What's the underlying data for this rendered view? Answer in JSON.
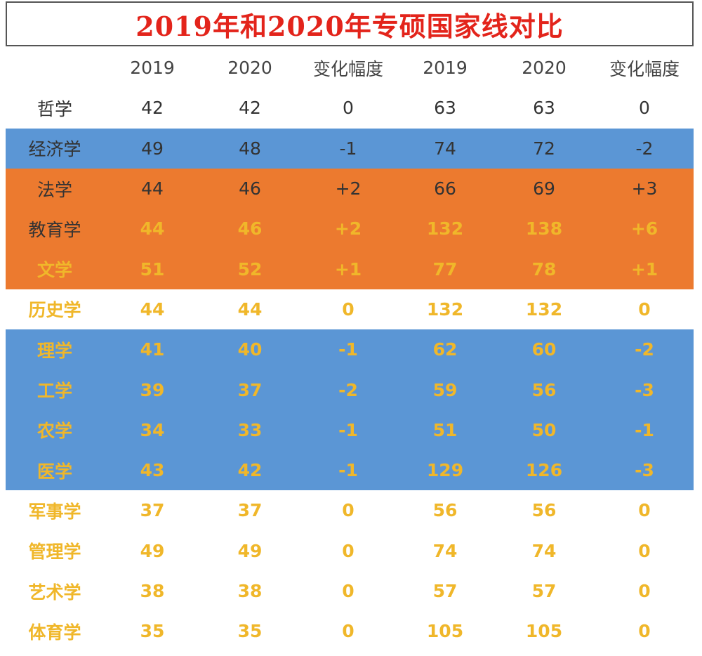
{
  "title": "2019年和2020年专硕国家线对比",
  "header": [
    "",
    "2019",
    "2020",
    "变化幅度",
    "2019",
    "2020",
    "变化幅度"
  ],
  "rows": [
    {
      "cells": [
        "哲学",
        "42",
        "42",
        "0",
        "63",
        "63",
        "0"
      ],
      "bg": "none",
      "text": "dark"
    },
    {
      "cells": [
        "经济学",
        "49",
        "48",
        "-1",
        "74",
        "72",
        "-2"
      ],
      "bg": "blue",
      "text": "dark"
    },
    {
      "cells": [
        "法学",
        "44",
        "46",
        "+2",
        "66",
        "69",
        "+3"
      ],
      "bg": "orange",
      "text": "dark"
    },
    {
      "cells": [
        "教育学",
        "44",
        "46",
        "+2",
        "132",
        "138",
        "+6"
      ],
      "bg": "orange",
      "text": "gold",
      "label_text": "dark"
    },
    {
      "cells": [
        "文学",
        "51",
        "52",
        "+1",
        "77",
        "78",
        "+1"
      ],
      "bg": "orange",
      "text": "gold"
    },
    {
      "cells": [
        "历史学",
        "44",
        "44",
        "0",
        "132",
        "132",
        "0"
      ],
      "bg": "none",
      "text": "gold"
    },
    {
      "cells": [
        "理学",
        "41",
        "40",
        "-1",
        "62",
        "60",
        "-2"
      ],
      "bg": "blue",
      "text": "gold"
    },
    {
      "cells": [
        "工学",
        "39",
        "37",
        "-2",
        "59",
        "56",
        "-3"
      ],
      "bg": "blue",
      "text": "gold"
    },
    {
      "cells": [
        "农学",
        "34",
        "33",
        "-1",
        "51",
        "50",
        "-1"
      ],
      "bg": "blue",
      "text": "gold"
    },
    {
      "cells": [
        "医学",
        "43",
        "42",
        "-1",
        "129",
        "126",
        "-3"
      ],
      "bg": "blue",
      "text": "gold"
    },
    {
      "cells": [
        "军事学",
        "37",
        "37",
        "0",
        "56",
        "56",
        "0"
      ],
      "bg": "none",
      "text": "gold"
    },
    {
      "cells": [
        "管理学",
        "49",
        "49",
        "0",
        "74",
        "74",
        "0"
      ],
      "bg": "none",
      "text": "gold"
    },
    {
      "cells": [
        "艺术学",
        "38",
        "38",
        "0",
        "57",
        "57",
        "0"
      ],
      "bg": "none",
      "text": "gold"
    },
    {
      "cells": [
        "体育学",
        "35",
        "35",
        "0",
        "105",
        "105",
        "0"
      ],
      "bg": "none",
      "text": "gold"
    }
  ],
  "colors": {
    "title": "#e3241b",
    "blue_band": "#5b96d5",
    "orange_band": "#ec7a2f",
    "gold_text": "#f0b72a",
    "dark_text": "#333333"
  }
}
